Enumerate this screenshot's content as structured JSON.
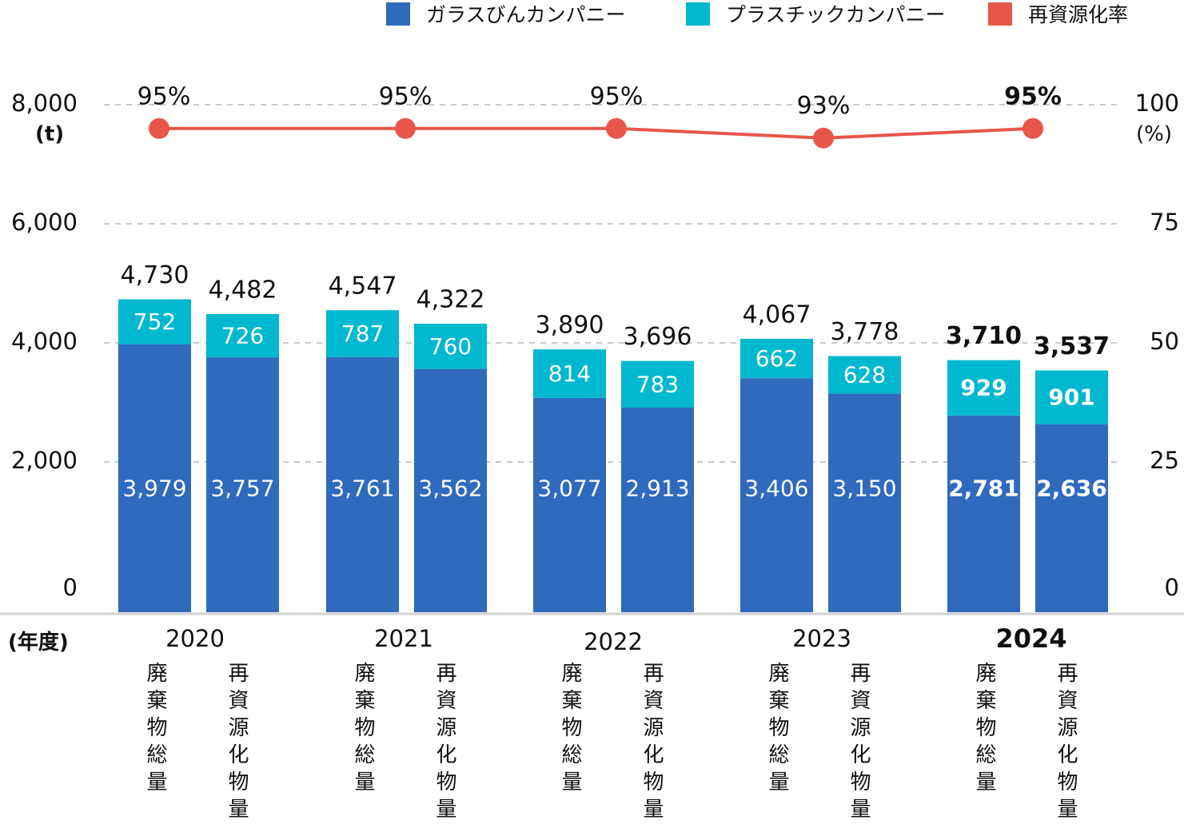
{
  "legend": [
    {
      "label": "ガラスびんカンパニー",
      "color": "#2f6abd"
    },
    {
      "label": "プラスチックカンパニー",
      "color": "#00b8d0"
    },
    {
      "label": "再資源化率",
      "color": "#e8564a"
    }
  ],
  "axis_units": {
    "left": "(t)",
    "right": "(%)",
    "x": "(年度)"
  },
  "chart_data": {
    "type": "bar",
    "title": "",
    "stacked": true,
    "xlabel": "(年度)",
    "ylabel": "(t)",
    "y2label": "(%)",
    "ylim": [
      0,
      8000
    ],
    "y2lim": [
      0,
      100
    ],
    "yticks": [
      0,
      2000,
      4000,
      6000,
      8000
    ],
    "y2ticks": [
      0,
      25,
      50,
      75,
      100
    ],
    "grid": true,
    "legend_position": "top-right",
    "categories": [
      "2020",
      "2021",
      "2022",
      "2023",
      "2024"
    ],
    "sub_categories": [
      "廃棄物総量",
      "再資源化物量"
    ],
    "highlight_category": "2024",
    "series": [
      {
        "name": "ガラスびんカンパニー",
        "type": "bar",
        "color": "#2f6abd",
        "values": [
          [
            3979,
            3757
          ],
          [
            3761,
            3562
          ],
          [
            3077,
            2913
          ],
          [
            3406,
            3150
          ],
          [
            2781,
            2636
          ]
        ]
      },
      {
        "name": "プラスチックカンパニー",
        "type": "bar",
        "color": "#00b8d0",
        "values": [
          [
            752,
            726
          ],
          [
            787,
            760
          ],
          [
            814,
            783
          ],
          [
            662,
            628
          ],
          [
            929,
            901
          ]
        ]
      },
      {
        "name": "再資源化率",
        "type": "line",
        "axis": "right",
        "unit": "%",
        "color": "#e8564a",
        "values": [
          95,
          95,
          95,
          93,
          95
        ]
      }
    ],
    "totals": [
      [
        4730,
        4482
      ],
      [
        4547,
        4322
      ],
      [
        3890,
        3696
      ],
      [
        4067,
        3778
      ],
      [
        3710,
        3537
      ]
    ]
  }
}
